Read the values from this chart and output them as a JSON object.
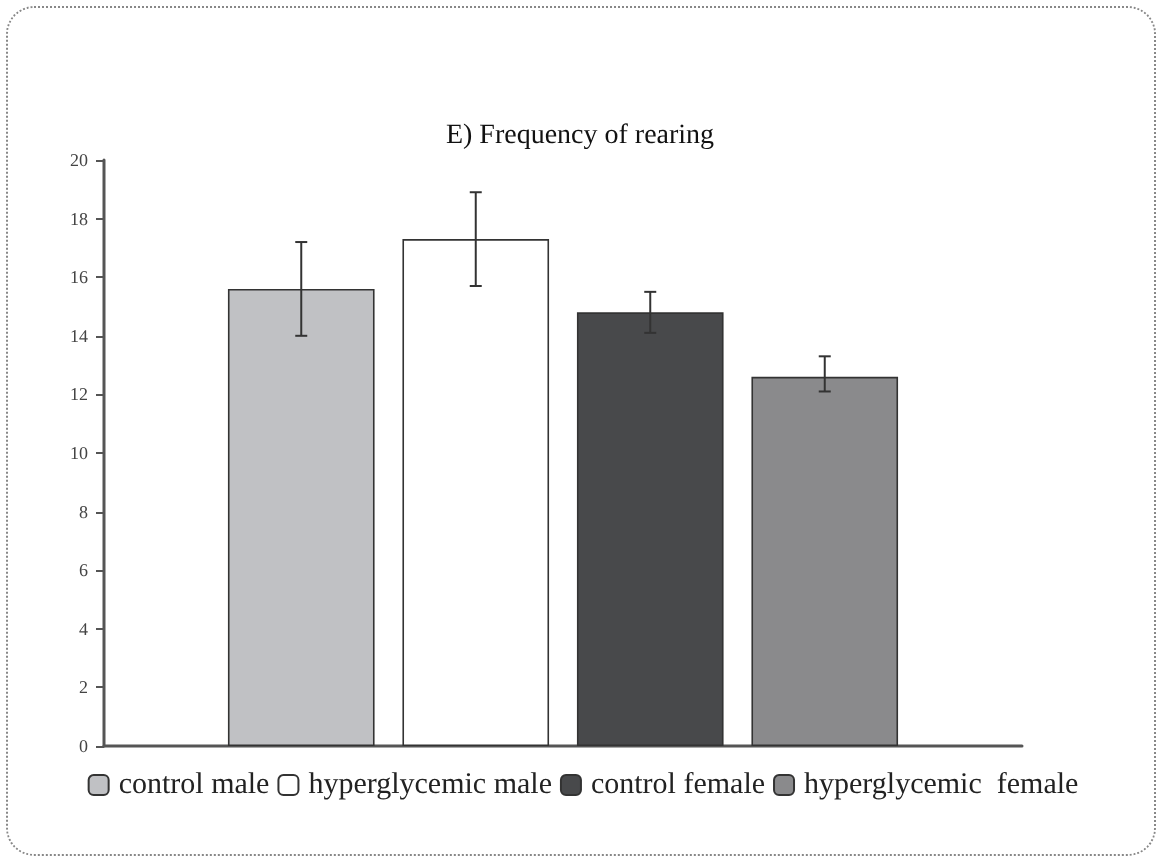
{
  "chart_data": {
    "type": "bar",
    "title": "E) Frequency of rearing",
    "categories": [
      null
    ],
    "series": [
      {
        "name": "control male",
        "color": "#c0c1c4",
        "values": [
          15.6
        ],
        "errors": [
          1.6
        ]
      },
      {
        "name": "hyperglycemic male",
        "color": "#ffffff",
        "values": [
          17.3
        ],
        "errors": [
          1.6
        ]
      },
      {
        "name": "control female",
        "color": "#48494b",
        "values": [
          14.8
        ],
        "errors": [
          0.7
        ]
      },
      {
        "name": "hyperglycemic  female",
        "color": "#8a8a8c",
        "values": [
          12.6
        ],
        "errors": [
          [
            12.1,
            13.3
          ]
        ]
      }
    ],
    "ylim": [
      0,
      20
    ],
    "yticks": [
      0,
      2,
      4,
      6,
      8,
      10,
      12,
      14,
      16,
      18,
      20
    ],
    "grid": false,
    "legend": "bottom"
  }
}
